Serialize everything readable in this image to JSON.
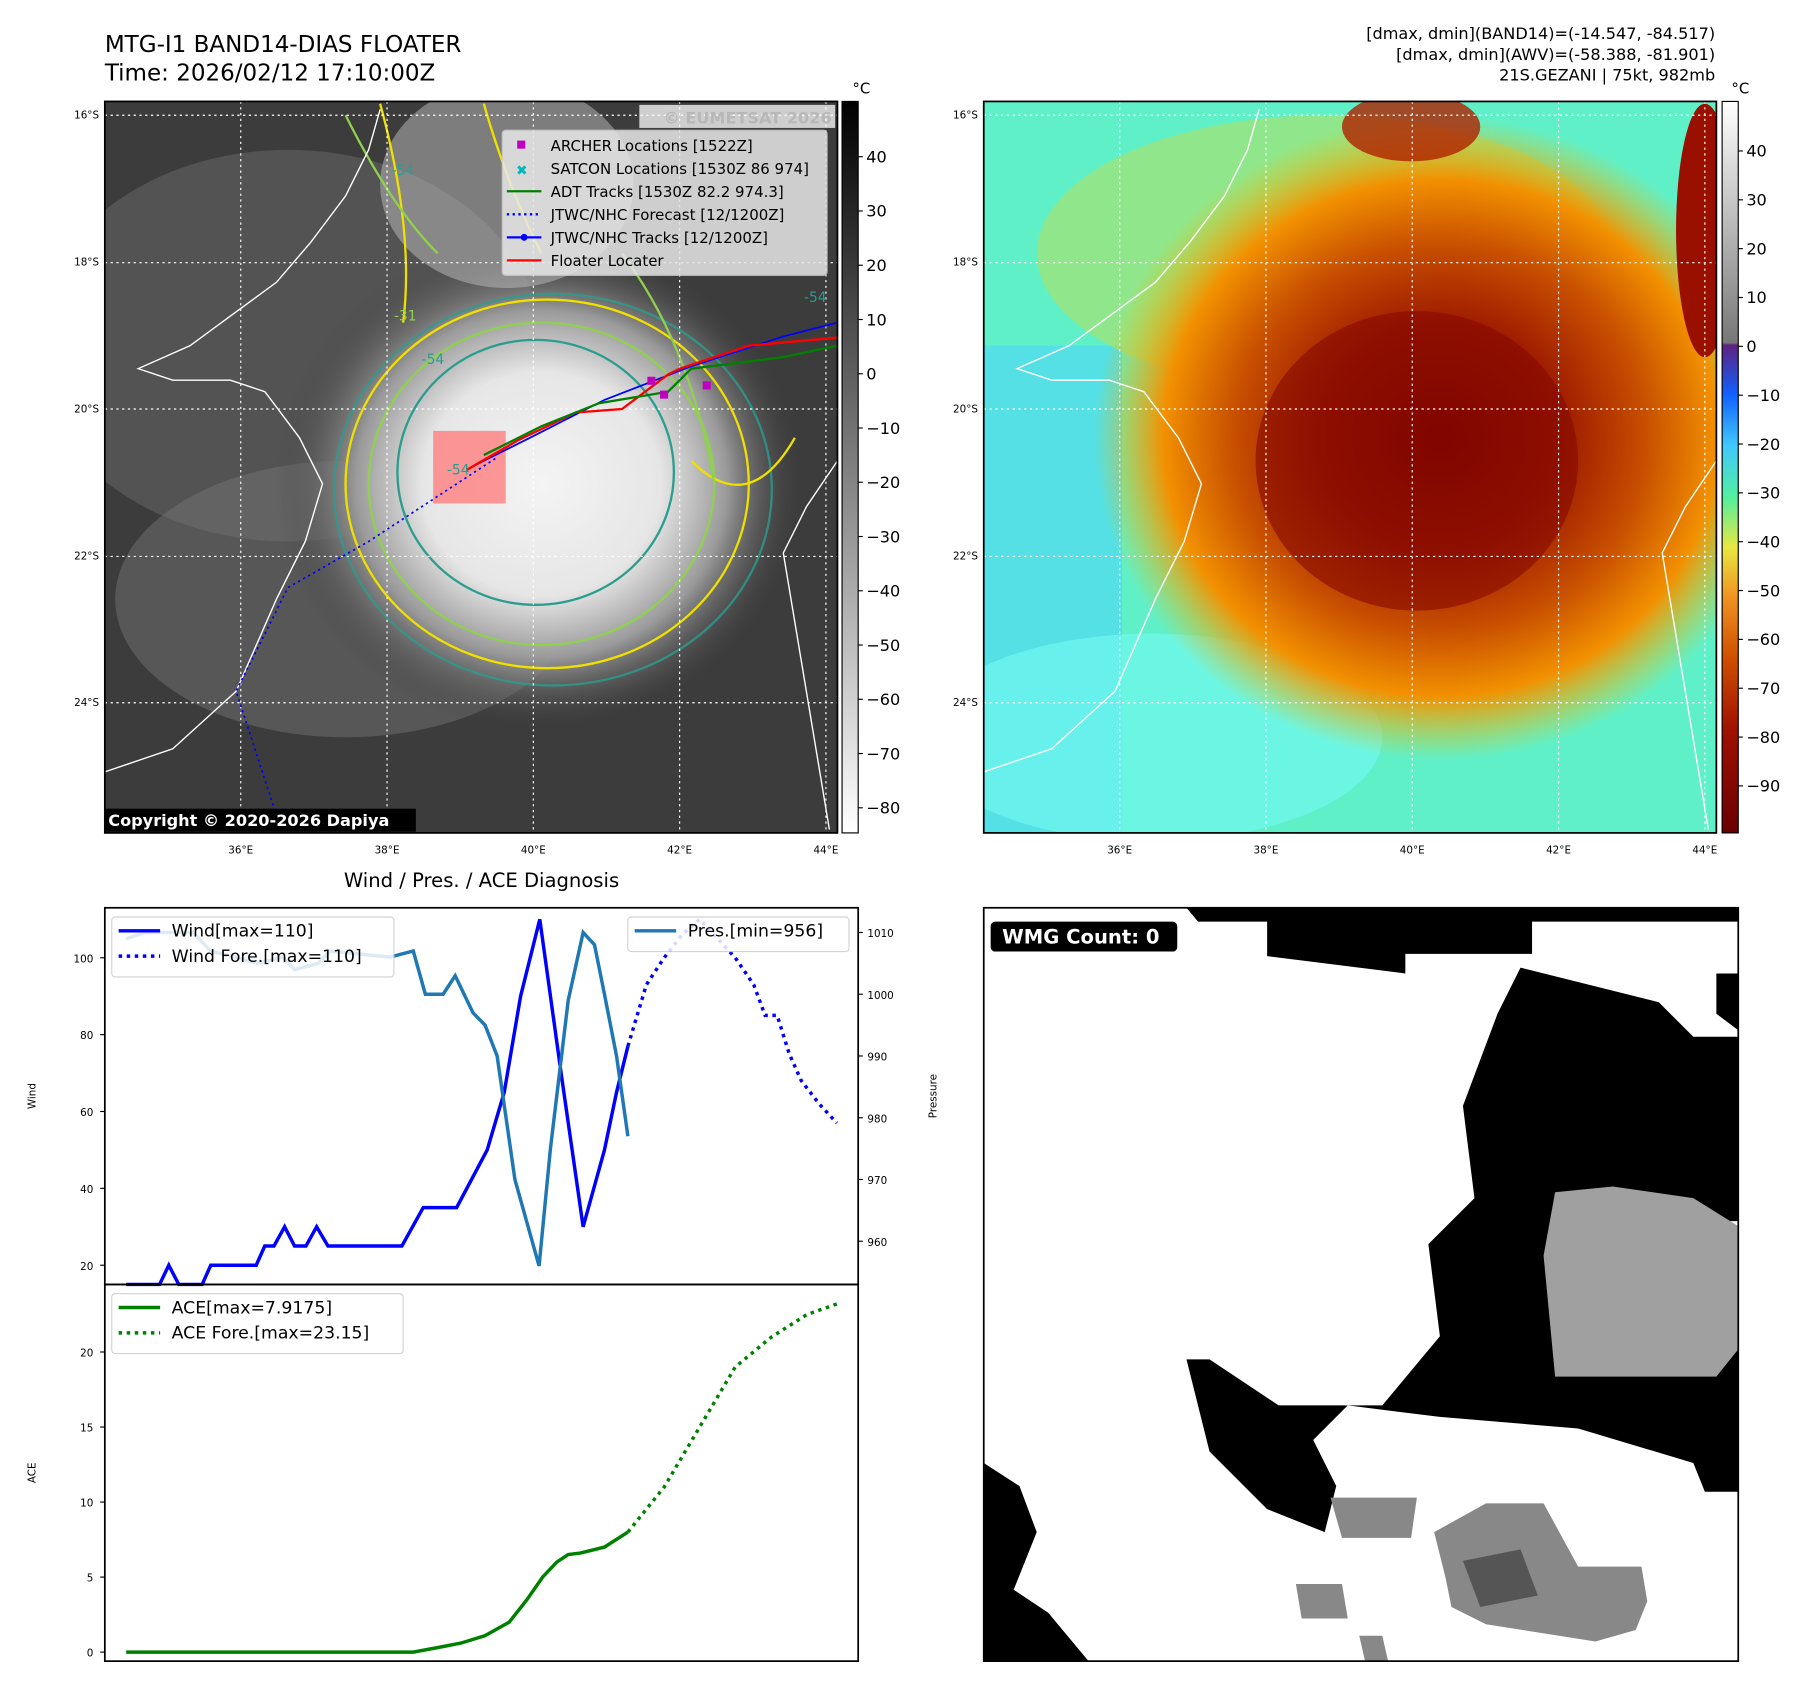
{
  "header": {
    "title": "MTG-I1 BAND14-DIAS FLOATER",
    "time": "Time: 2026/02/12 17:10:00Z",
    "stats_line1": "[dmax, dmin](BAND14)=(-14.547, -84.517)",
    "stats_line2": "[dmax, dmin](AWV)=(-58.388, -81.901)",
    "storm_line": "21S.GEZANI | 75kt, 982mb"
  },
  "map": {
    "lat_labels": [
      "16°S",
      "18°S",
      "20°S",
      "22°S",
      "24°S"
    ],
    "lon_labels": [
      "36°E",
      "38°E",
      "40°E",
      "42°E",
      "44°E"
    ],
    "watermark": "© EUMETSAT 2026",
    "copyright": "Copyright © 2020-2026 Dapiya",
    "contour_labels": [
      "-54",
      "-31",
      "-54",
      "-54",
      "-54"
    ],
    "legend": [
      {
        "label": "ARCHER Locations [1522Z]",
        "color": "#c000c0"
      },
      {
        "label": "SATCON Locations [1530Z 86 974]",
        "color": "#00b8b8"
      },
      {
        "label": "ADT Tracks [1530Z 82.2 974.3]",
        "color": "#008000"
      },
      {
        "label": "JTWC/NHC Forecast [12/1200Z]",
        "color": "#0000ff"
      },
      {
        "label": "JTWC/NHC Tracks [12/1200Z]",
        "color": "#0000ff"
      },
      {
        "label": "Floater Locater",
        "color": "#ff0000"
      }
    ]
  },
  "colorbar_ir": {
    "unit": "°C",
    "ticks": [
      "40",
      "30",
      "20",
      "10",
      "0",
      "−10",
      "−20",
      "−30",
      "−40",
      "−50",
      "−60",
      "−70",
      "−80"
    ]
  },
  "colorbar_wv": {
    "unit": "°C",
    "ticks": [
      "40",
      "30",
      "20",
      "10",
      "0",
      "−10",
      "−20",
      "−30",
      "−40",
      "−50",
      "−60",
      "−70",
      "−80",
      "−90"
    ]
  },
  "wmg": {
    "label": "WMG Count: 0"
  },
  "chart_data": [
    {
      "type": "line",
      "title": "Wind / Pres. / ACE Diagnosis",
      "ylabel": "Wind",
      "y2label": "Pressure",
      "ylim": [
        15,
        113
      ],
      "y2lim": [
        953,
        1014
      ],
      "xlim": [
        -3,
        103
      ],
      "yticks": [
        20,
        40,
        60,
        80,
        100
      ],
      "y2ticks": [
        960,
        970,
        980,
        990,
        1000,
        1010
      ],
      "series": [
        {
          "name": "Wind[max=110]",
          "color": "#0000ff",
          "style": "solid",
          "axis": "left",
          "x": [
            0,
            4.7,
            6,
            7.4,
            10.7,
            11.9,
            18.3,
            19.5,
            20.8,
            22.3,
            23.7,
            25.3,
            26.8,
            28.4,
            38.8,
            41.8,
            46.5,
            50.8,
            53.2,
            55.5,
            58.2,
            61.2,
            64.3,
            67.3,
            69,
            70.6
          ],
          "y": [
            15,
            15,
            20,
            15,
            15,
            20,
            20,
            25,
            25,
            30,
            25,
            25,
            30,
            25,
            25,
            35,
            35,
            50,
            65,
            90,
            110,
            70,
            30,
            50,
            65,
            77
          ]
        },
        {
          "name": "Wind Fore.[max=110]",
          "color": "#0000ff",
          "style": "dotted",
          "axis": "left",
          "x": [
            70.6,
            73.2,
            75.7,
            78.2,
            80.7,
            83.2,
            85.7,
            88.3,
            89.9,
            91.6,
            93.3,
            95,
            97.5,
            100
          ],
          "y": [
            77,
            93,
            100,
            106,
            110,
            105,
            100,
            93,
            85,
            85,
            75,
            68,
            62,
            57
          ]
        },
        {
          "name": "Pres.[min=956]",
          "color": "#1f77b4",
          "style": "solid",
          "axis": "right",
          "x": [
            0,
            2.7,
            9.4,
            11.9,
            18.6,
            22,
            23.7,
            27,
            28.7,
            37.1,
            40.4,
            42.1,
            44.6,
            46.3,
            48.8,
            50.5,
            52.2,
            54.7,
            58.1,
            59.7,
            62.2,
            64.3,
            65.9,
            67.3,
            69,
            70.6
          ],
          "y": [
            1009,
            1010,
            1010,
            1007,
            1005,
            1006,
            1004,
            1005,
            1007,
            1006,
            1007,
            1000,
            1000,
            1003,
            997,
            995,
            990,
            970,
            956,
            975,
            999,
            1010,
            1008,
            1000,
            990,
            977
          ]
        }
      ]
    },
    {
      "type": "line",
      "ylabel": "ACE",
      "ylim": [
        -0.6,
        24.5
      ],
      "xlim": [
        -3,
        103
      ],
      "yticks": [
        0,
        5,
        10,
        15,
        20
      ],
      "series": [
        {
          "name": "ACE[max=7.9175]",
          "color": "#008000",
          "style": "solid",
          "x": [
            0,
            40.4,
            43.8,
            47.1,
            50.5,
            53.9,
            56.4,
            58.6,
            60.6,
            62.2,
            63.9,
            67.3,
            70.6
          ],
          "y": [
            0,
            0,
            0.3,
            0.6,
            1.1,
            2,
            3.5,
            5,
            6,
            6.5,
            6.6,
            7,
            8
          ]
        },
        {
          "name": "ACE Fore.[max=23.15]",
          "color": "#008000",
          "style": "dotted",
          "x": [
            70.6,
            75.7,
            80.7,
            85.7,
            90.8,
            95.8,
            100
          ],
          "y": [
            8,
            11,
            15,
            19,
            21,
            22.5,
            23.2
          ]
        }
      ]
    }
  ]
}
